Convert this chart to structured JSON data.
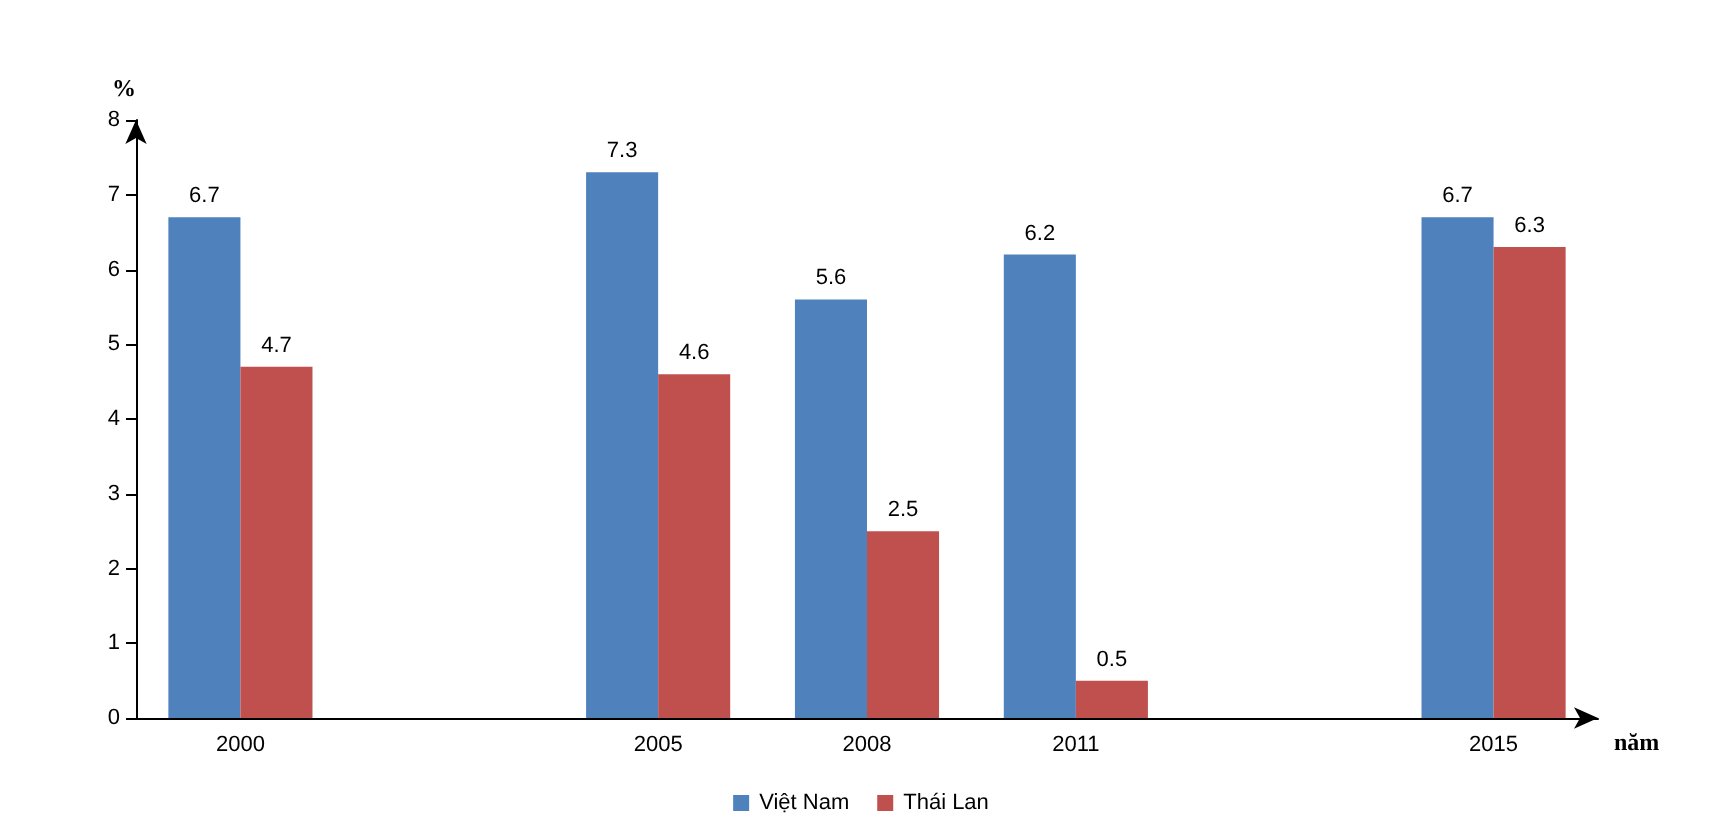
{
  "chart_data": {
    "type": "bar",
    "xlabel": "năm",
    "ylabel": "%",
    "categories": [
      "2000",
      null,
      "2005",
      "2008",
      "2011",
      null,
      "2015"
    ],
    "series": [
      {
        "name": "Việt Nam",
        "color": "#4f81bd",
        "values": [
          6.7,
          null,
          7.3,
          5.6,
          6.2,
          null,
          6.7
        ]
      },
      {
        "name": "Thái Lan",
        "color": "#c0504d",
        "values": [
          4.7,
          null,
          4.6,
          2.5,
          0.5,
          null,
          6.3
        ]
      }
    ],
    "ylim": [
      0,
      8
    ],
    "yticks": [
      0,
      1,
      2,
      3,
      4,
      5,
      6,
      7,
      8
    ],
    "data_labels": true,
    "legend": "bottom"
  }
}
